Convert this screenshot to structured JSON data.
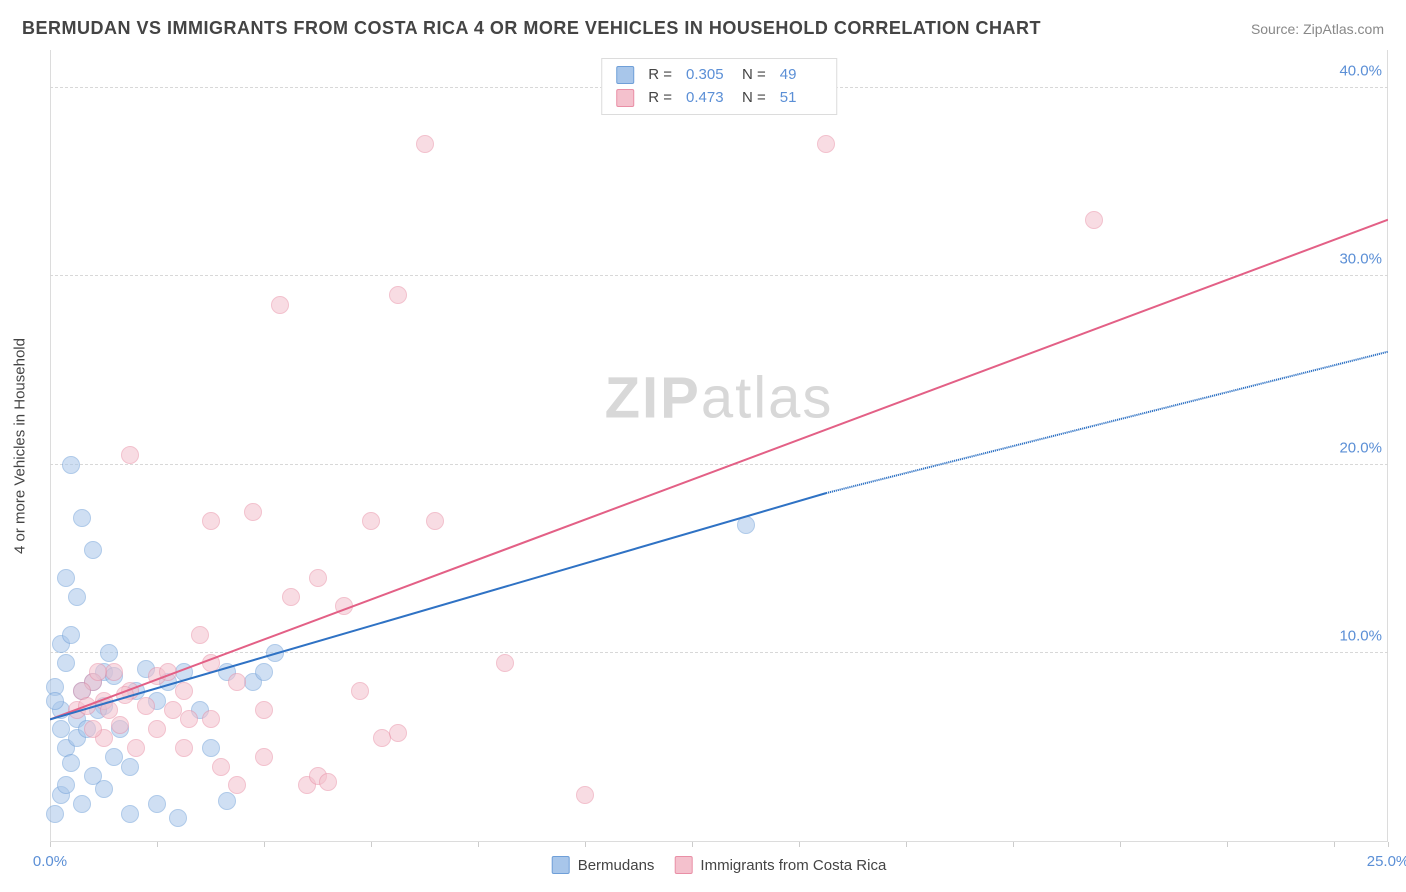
{
  "header": {
    "title": "BERMUDAN VS IMMIGRANTS FROM COSTA RICA 4 OR MORE VEHICLES IN HOUSEHOLD CORRELATION CHART",
    "source": "Source: ZipAtlas.com"
  },
  "chart": {
    "type": "scatter",
    "y_label": "4 or more Vehicles in Household",
    "watermark": {
      "bold": "ZIP",
      "rest": "atlas"
    },
    "x_range": [
      0,
      25
    ],
    "y_range": [
      0,
      42
    ],
    "x_ticks": [
      0,
      2,
      4,
      6,
      8,
      10,
      12,
      14,
      16,
      18,
      20,
      22,
      24,
      25
    ],
    "x_tick_labels": [
      {
        "val": 0,
        "label": "0.0%"
      },
      {
        "val": 25,
        "label": "25.0%"
      }
    ],
    "y_grid": [
      10,
      20,
      30,
      40
    ],
    "y_tick_labels": [
      {
        "val": 10,
        "label": "10.0%"
      },
      {
        "val": 20,
        "label": "20.0%"
      },
      {
        "val": 30,
        "label": "30.0%"
      },
      {
        "val": 40,
        "label": "40.0%"
      }
    ],
    "background_color": "#ffffff",
    "grid_color": "#d8d8d8",
    "axis_color": "#dcdcdc",
    "tick_label_color": "#5b8fd6",
    "marker_radius": 9,
    "marker_opacity": 0.55,
    "line_width": 2
  },
  "series_a": {
    "name": "Bermudans",
    "color_fill": "#a8c6ea",
    "color_stroke": "#6f9fd8",
    "line_color": "#2f72c4",
    "R": "0.305",
    "N": "49",
    "trend": {
      "x1": 0,
      "y1": 6.5,
      "x2": 14.5,
      "y2": 18.5,
      "x2_ext": 25,
      "y2_ext": 26.0
    },
    "points": [
      [
        0.2,
        7.0
      ],
      [
        0.3,
        5.0
      ],
      [
        0.1,
        8.2
      ],
      [
        0.3,
        9.5
      ],
      [
        0.2,
        10.5
      ],
      [
        0.1,
        7.5
      ],
      [
        0.4,
        4.2
      ],
      [
        0.5,
        6.5
      ],
      [
        0.4,
        11.0
      ],
      [
        0.6,
        8.0
      ],
      [
        0.4,
        20.0
      ],
      [
        0.6,
        17.2
      ],
      [
        0.3,
        14.0
      ],
      [
        0.5,
        13.0
      ],
      [
        0.8,
        15.5
      ],
      [
        0.8,
        8.5
      ],
      [
        1.0,
        9.0
      ],
      [
        1.0,
        7.2
      ],
      [
        1.2,
        8.8
      ],
      [
        1.1,
        10.0
      ],
      [
        1.3,
        6.0
      ],
      [
        1.5,
        4.0
      ],
      [
        1.5,
        1.5
      ],
      [
        1.6,
        8.0
      ],
      [
        1.8,
        9.2
      ],
      [
        2.0,
        7.5
      ],
      [
        2.0,
        2.0
      ],
      [
        2.2,
        8.5
      ],
      [
        2.4,
        1.3
      ],
      [
        2.5,
        9.0
      ],
      [
        2.8,
        7.0
      ],
      [
        3.0,
        5.0
      ],
      [
        3.3,
        9.0
      ],
      [
        3.3,
        2.2
      ],
      [
        3.8,
        8.5
      ],
      [
        4.0,
        9.0
      ],
      [
        4.2,
        10.0
      ],
      [
        0.2,
        2.5
      ],
      [
        0.1,
        1.5
      ],
      [
        0.3,
        3.0
      ],
      [
        0.6,
        2.0
      ],
      [
        0.8,
        3.5
      ],
      [
        1.0,
        2.8
      ],
      [
        1.2,
        4.5
      ],
      [
        0.5,
        5.5
      ],
      [
        0.7,
        6.0
      ],
      [
        0.9,
        7.0
      ],
      [
        13.0,
        16.8
      ],
      [
        0.2,
        6.0
      ]
    ]
  },
  "series_b": {
    "name": "Immigrants from Costa Rica",
    "color_fill": "#f4c1cd",
    "color_stroke": "#e98fa6",
    "line_color": "#e36086",
    "R": "0.473",
    "N": "51",
    "trend": {
      "x1": 0,
      "y1": 6.5,
      "x2": 25,
      "y2": 33.0
    },
    "points": [
      [
        0.5,
        7.0
      ],
      [
        0.8,
        8.5
      ],
      [
        1.0,
        7.5
      ],
      [
        1.2,
        9.0
      ],
      [
        1.5,
        8.0
      ],
      [
        1.5,
        20.5
      ],
      [
        1.8,
        7.2
      ],
      [
        2.0,
        8.8
      ],
      [
        2.0,
        6.0
      ],
      [
        2.2,
        9.0
      ],
      [
        2.5,
        8.0
      ],
      [
        2.5,
        5.0
      ],
      [
        2.8,
        11.0
      ],
      [
        3.0,
        17.0
      ],
      [
        3.0,
        6.5
      ],
      [
        3.2,
        4.0
      ],
      [
        3.5,
        8.5
      ],
      [
        3.5,
        3.0
      ],
      [
        3.8,
        17.5
      ],
      [
        4.0,
        7.0
      ],
      [
        4.0,
        4.5
      ],
      [
        4.3,
        28.5
      ],
      [
        4.5,
        13.0
      ],
      [
        4.8,
        3.0
      ],
      [
        5.0,
        14.0
      ],
      [
        5.0,
        3.5
      ],
      [
        5.2,
        3.2
      ],
      [
        5.5,
        12.5
      ],
      [
        5.8,
        8.0
      ],
      [
        6.0,
        17.0
      ],
      [
        6.2,
        5.5
      ],
      [
        6.5,
        29.0
      ],
      [
        6.5,
        5.8
      ],
      [
        7.0,
        37.0
      ],
      [
        7.2,
        17.0
      ],
      [
        8.5,
        9.5
      ],
      [
        10.0,
        2.5
      ],
      [
        14.5,
        37.0
      ],
      [
        19.5,
        33.0
      ],
      [
        1.0,
        5.5
      ],
      [
        1.3,
        6.2
      ],
      [
        1.6,
        5.0
      ],
      [
        0.8,
        6.0
      ],
      [
        1.1,
        7.0
      ],
      [
        1.4,
        7.8
      ],
      [
        2.3,
        7.0
      ],
      [
        2.6,
        6.5
      ],
      [
        3.0,
        9.5
      ],
      [
        0.6,
        8.0
      ],
      [
        0.9,
        9.0
      ],
      [
        0.7,
        7.2
      ]
    ]
  },
  "legend_top_label": {
    "R": "R  =",
    "N": "N  ="
  },
  "legend_bottom": {
    "a": "Bermudans",
    "b": "Immigrants from Costa Rica"
  }
}
